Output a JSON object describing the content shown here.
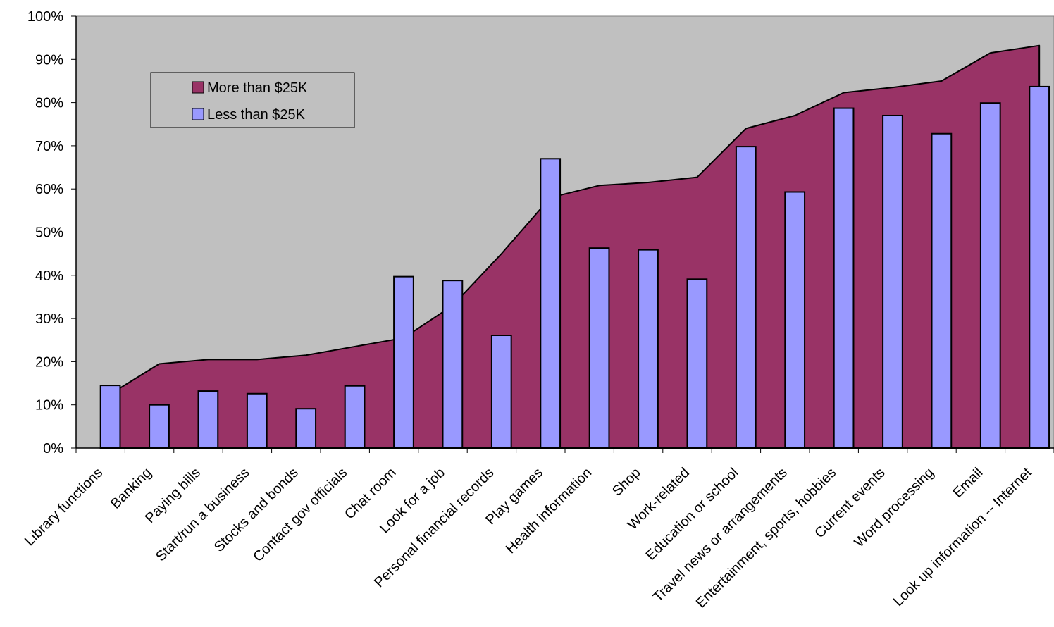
{
  "chart_data": {
    "type": "bar",
    "categories": [
      "Library functions",
      "Banking",
      "Paying bills",
      "Start/run a business",
      "Stocks and bonds",
      "Contact gov officials",
      "Chat room",
      "Look for a job",
      "Personal financial records",
      "Play games",
      "Health information",
      "Shop",
      "Work-related",
      "Education or school",
      "Travel news or arrangements",
      "Entertainment, sports, hobbies",
      "Current events",
      "Word processing",
      "Email",
      "Look up information -- Internet"
    ],
    "series": [
      {
        "name": "More than $25K",
        "type": "area",
        "color": "#993366",
        "values": [
          12.5,
          19.5,
          20.5,
          20.5,
          21.5,
          23.5,
          25.5,
          33,
          45,
          58,
          60.8,
          61.5,
          62.7,
          74,
          77,
          82.3,
          83.5,
          85,
          91.5,
          93.2
        ]
      },
      {
        "name": "Less than $25K",
        "type": "bar",
        "color": "#9999ff",
        "values": [
          14.5,
          10,
          13.2,
          12.6,
          9.1,
          14.4,
          39.7,
          38.8,
          26.1,
          67,
          46.3,
          45.9,
          39.1,
          69.8,
          59.3,
          78.7,
          77,
          72.8,
          79.9,
          83.7
        ]
      }
    ],
    "ylim": [
      0,
      100
    ],
    "y_ticks": [
      "0%",
      "10%",
      "20%",
      "30%",
      "40%",
      "50%",
      "60%",
      "70%",
      "80%",
      "90%",
      "100%"
    ],
    "legend": {
      "position": "top-left",
      "entries": [
        "More than $25K",
        "Less than $25K"
      ]
    },
    "plot_background": "#c0c0c0",
    "grid": false
  }
}
